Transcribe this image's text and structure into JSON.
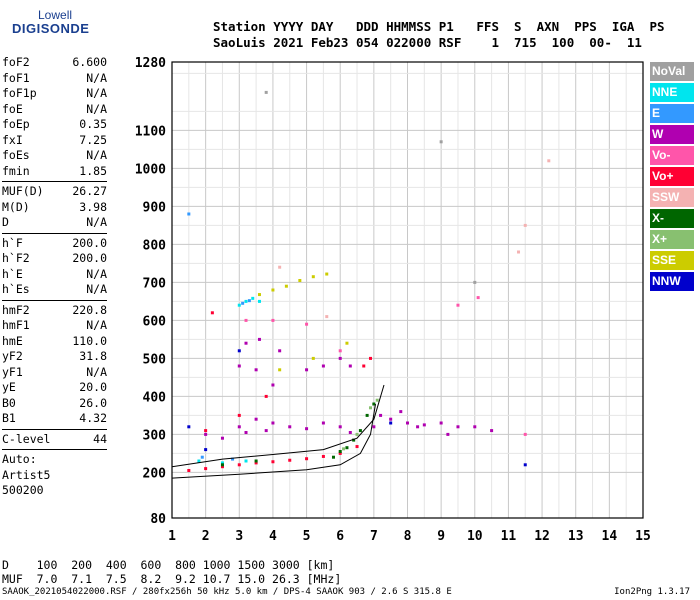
{
  "logo": {
    "line1": "Lowell",
    "line2": "DIGISONDE"
  },
  "header": {
    "line1": "Station YYYY DAY   DDD HHMMSS P1   FFS  S  AXN  PPS  IGA  PS",
    "line2": "SaoLuis 2021 Feb23 054 022000 RSF    1  715  100  00-  11"
  },
  "params": {
    "group1": [
      {
        "name": "foF2",
        "value": "6.600"
      },
      {
        "name": "foF1",
        "value": "N/A"
      },
      {
        "name": "foF1p",
        "value": "N/A"
      },
      {
        "name": "foE",
        "value": "N/A"
      },
      {
        "name": "foEp",
        "value": "0.35"
      },
      {
        "name": "fxI",
        "value": "7.25"
      },
      {
        "name": "foEs",
        "value": "N/A"
      },
      {
        "name": "fmin",
        "value": "1.85"
      }
    ],
    "group2": [
      {
        "name": "MUF(D)",
        "value": "26.27"
      },
      {
        "name": "M(D)",
        "value": "3.98"
      },
      {
        "name": "D",
        "value": "N/A"
      }
    ],
    "group3": [
      {
        "name": "h`F",
        "value": "200.0"
      },
      {
        "name": "h`F2",
        "value": "200.0"
      },
      {
        "name": "h`E",
        "value": "N/A"
      },
      {
        "name": "h`Es",
        "value": "N/A"
      }
    ],
    "group4": [
      {
        "name": "hmF2",
        "value": "220.8"
      },
      {
        "name": "hmF1",
        "value": "N/A"
      },
      {
        "name": "hmE",
        "value": "110.0"
      },
      {
        "name": "yF2",
        "value": "31.8"
      },
      {
        "name": "yF1",
        "value": "N/A"
      },
      {
        "name": "yE",
        "value": "20.0"
      },
      {
        "name": "B0",
        "value": "26.0"
      },
      {
        "name": "B1",
        "value": "4.32"
      }
    ],
    "clevel": {
      "name": "C-level",
      "value": "44"
    },
    "auto": [
      "Auto:",
      "Artist5",
      "500200"
    ]
  },
  "legend": [
    {
      "label": "NoVal",
      "color": "#a0a0a0"
    },
    {
      "label": "NNE",
      "color": "#00e5ee"
    },
    {
      "label": "E",
      "color": "#3399ff"
    },
    {
      "label": "W",
      "color": "#b000b0"
    },
    {
      "label": "Vo-",
      "color": "#ff55aa"
    },
    {
      "label": "Vo+",
      "color": "#ff0033"
    },
    {
      "label": "SSW",
      "color": "#f4b2b2"
    },
    {
      "label": "X-",
      "color": "#006600"
    },
    {
      "label": "X+",
      "color": "#88c070"
    },
    {
      "label": "SSE",
      "color": "#cccc00"
    },
    {
      "label": "NNW",
      "color": "#0000cc"
    }
  ],
  "chart_data": {
    "type": "scatter",
    "x_ticks": [
      "1",
      "2",
      "3",
      "4",
      "5",
      "6",
      "7",
      "8",
      "9",
      "10",
      "11",
      "12",
      "13",
      "14",
      "15"
    ],
    "y_ticks": [
      "80",
      "200",
      "300",
      "400",
      "500",
      "600",
      "700",
      "800",
      "900",
      "1000",
      "1100",
      "1280"
    ],
    "xlim": [
      1,
      15
    ],
    "ylim": [
      80,
      1280
    ],
    "grid": true,
    "series": [
      {
        "name": "W",
        "color": "#b000b0",
        "points": [
          [
            2.0,
            300
          ],
          [
            2.5,
            290
          ],
          [
            3.0,
            320
          ],
          [
            3.2,
            305
          ],
          [
            3.5,
            340
          ],
          [
            3.8,
            310
          ],
          [
            4.0,
            330
          ],
          [
            4.5,
            320
          ],
          [
            5.0,
            315
          ],
          [
            5.5,
            330
          ],
          [
            6.0,
            320
          ],
          [
            6.3,
            305
          ],
          [
            7.0,
            320
          ],
          [
            7.5,
            340
          ],
          [
            8.0,
            330
          ],
          [
            8.5,
            325
          ],
          [
            9.0,
            330
          ],
          [
            9.5,
            320
          ],
          [
            10.0,
            320
          ],
          [
            10.5,
            310
          ],
          [
            3.0,
            480
          ],
          [
            3.5,
            470
          ],
          [
            4.0,
            430
          ],
          [
            3.2,
            540
          ],
          [
            3.6,
            550
          ],
          [
            4.2,
            520
          ],
          [
            5.0,
            470
          ],
          [
            5.5,
            480
          ],
          [
            6.0,
            500
          ],
          [
            6.3,
            480
          ],
          [
            7.2,
            350
          ],
          [
            7.8,
            360
          ],
          [
            8.3,
            320
          ],
          [
            9.2,
            300
          ]
        ]
      },
      {
        "name": "Vo+",
        "color": "#ff0033",
        "points": [
          [
            1.5,
            205
          ],
          [
            2.0,
            210
          ],
          [
            2.5,
            215
          ],
          [
            3.0,
            220
          ],
          [
            3.5,
            225
          ],
          [
            4.0,
            228
          ],
          [
            4.5,
            232
          ],
          [
            5.0,
            236
          ],
          [
            5.5,
            242
          ],
          [
            6.0,
            250
          ],
          [
            6.5,
            268
          ],
          [
            2.0,
            310
          ],
          [
            3.0,
            350
          ],
          [
            3.8,
            400
          ],
          [
            6.7,
            480
          ],
          [
            6.9,
            500
          ],
          [
            2.2,
            620
          ]
        ]
      },
      {
        "name": "NNE",
        "color": "#00e5ee",
        "points": [
          [
            3.0,
            640
          ],
          [
            3.2,
            650
          ],
          [
            3.4,
            658
          ],
          [
            1.8,
            230
          ],
          [
            2.5,
            225
          ],
          [
            3.2,
            230
          ],
          [
            3.6,
            650
          ]
        ]
      },
      {
        "name": "E",
        "color": "#3399ff",
        "points": [
          [
            3.1,
            645
          ],
          [
            3.3,
            652
          ],
          [
            1.9,
            240
          ],
          [
            2.8,
            235
          ],
          [
            1.5,
            880
          ]
        ]
      },
      {
        "name": "SSE",
        "color": "#cccc00",
        "points": [
          [
            3.6,
            668
          ],
          [
            4.0,
            680
          ],
          [
            4.4,
            690
          ],
          [
            4.8,
            705
          ],
          [
            5.2,
            715
          ],
          [
            5.6,
            722
          ],
          [
            4.2,
            470
          ],
          [
            5.2,
            500
          ],
          [
            6.2,
            540
          ]
        ]
      },
      {
        "name": "X-",
        "color": "#006600",
        "points": [
          [
            5.8,
            240
          ],
          [
            6.0,
            255
          ],
          [
            6.2,
            265
          ],
          [
            6.4,
            285
          ],
          [
            6.6,
            310
          ],
          [
            6.8,
            350
          ],
          [
            7.0,
            380
          ],
          [
            2.5,
            220
          ],
          [
            3.5,
            230
          ]
        ]
      },
      {
        "name": "X+",
        "color": "#88c070",
        "points": [
          [
            6.1,
            262
          ],
          [
            6.5,
            300
          ],
          [
            6.9,
            370
          ],
          [
            7.1,
            390
          ]
        ]
      },
      {
        "name": "NNW",
        "color": "#0000cc",
        "points": [
          [
            1.5,
            320
          ],
          [
            2.0,
            260
          ],
          [
            3.0,
            520
          ],
          [
            7.5,
            330
          ],
          [
            11.5,
            220
          ]
        ]
      },
      {
        "name": "Vo-",
        "color": "#ff55aa",
        "points": [
          [
            3.2,
            600
          ],
          [
            4.0,
            600
          ],
          [
            5.0,
            590
          ],
          [
            6.0,
            520
          ],
          [
            9.5,
            640
          ],
          [
            10.1,
            660
          ],
          [
            11.5,
            300
          ]
        ]
      },
      {
        "name": "SSW",
        "color": "#f4b2b2",
        "points": [
          [
            11.3,
            780
          ],
          [
            11.5,
            850
          ],
          [
            12.2,
            1020
          ],
          [
            4.2,
            740
          ],
          [
            5.6,
            610
          ]
        ]
      },
      {
        "name": "NoVal",
        "color": "#a0a0a0",
        "points": [
          [
            3.8,
            1200
          ],
          [
            10.0,
            700
          ],
          [
            9.0,
            1070
          ]
        ]
      }
    ],
    "traces": [
      {
        "name": "profile",
        "points": [
          [
            1.0,
            185
          ],
          [
            3.0,
            195
          ],
          [
            5.0,
            207
          ],
          [
            6.0,
            220
          ],
          [
            6.6,
            250
          ],
          [
            6.9,
            300
          ],
          [
            7.05,
            380
          ]
        ]
      },
      {
        "name": "profile-x",
        "points": [
          [
            1.0,
            215
          ],
          [
            2.5,
            235
          ],
          [
            4.0,
            247
          ],
          [
            5.5,
            260
          ],
          [
            6.5,
            290
          ],
          [
            7.0,
            340
          ],
          [
            7.3,
            430
          ]
        ]
      }
    ]
  },
  "bottom": {
    "d_row": "D    100  200  400  600  800 1000 1500 3000 [km]",
    "muf_row": "MUF  7.0  7.1  7.5  8.2  9.2 10.7 15.0 26.3 [MHz]"
  },
  "footer": {
    "left": "SAAOK_2021054022000.RSF / 280fx256h 50 kHz 5.0 km / DPS-4 SAAOK 903 / 2.6 S 315.8 E",
    "right": "Ion2Png 1.3.17"
  }
}
